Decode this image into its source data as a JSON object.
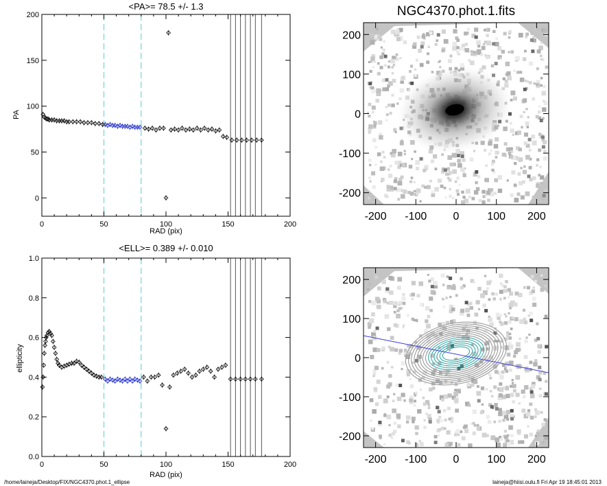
{
  "footer": {
    "path": "/home/laineja/Desktop/FIX/NGC4370.phot.1_ellipse",
    "user_date": "laineja@hiisi.oulu.fi  Fri Apr 19 18:45:01 2013"
  },
  "image_panels": {
    "title": "NGC4370.phot.1.fits",
    "x_ticks": [
      -200,
      -100,
      0,
      100,
      200
    ],
    "y_ticks": [
      -200,
      -100,
      0,
      100,
      200
    ]
  },
  "chart_data": [
    {
      "type": "scatter",
      "title": "<PA>=  78.5 +/-   1.3",
      "xlabel": "RAD (pix)",
      "ylabel": "PA",
      "xlim": [
        0,
        200
      ],
      "ylim": [
        -20,
        200
      ],
      "x_ticks": [
        0,
        50,
        100,
        150,
        200
      ],
      "y_ticks": [
        0,
        50,
        100,
        150,
        200
      ],
      "dashed_vlines": [
        50,
        80
      ],
      "solid_vlines": [
        152,
        156,
        160,
        164,
        168,
        172,
        177
      ],
      "series": [
        {
          "color": "#000000",
          "x": [
            1,
            2,
            3,
            4,
            5,
            6,
            8,
            10,
            12,
            14,
            16,
            18,
            20,
            22,
            25,
            28,
            31,
            34,
            37,
            40,
            43,
            46,
            49
          ],
          "y": [
            91,
            88,
            87,
            86,
            86,
            85,
            85,
            85,
            84,
            84,
            84,
            84,
            83,
            83,
            83,
            83,
            83,
            82,
            82,
            82,
            81,
            81,
            80
          ]
        },
        {
          "color": "#1f2ccc",
          "x": [
            51,
            53,
            55,
            57,
            59,
            61,
            63,
            65,
            67,
            69,
            71,
            73,
            75,
            77,
            79
          ],
          "y": [
            80,
            79,
            80,
            79,
            79,
            78,
            79,
            78,
            78,
            78,
            77,
            78,
            77,
            77,
            77
          ]
        },
        {
          "color": "#000000",
          "x": [
            83,
            86,
            89,
            92,
            95,
            98,
            100,
            102,
            104,
            107,
            110,
            113,
            116,
            119,
            122,
            125,
            128,
            131,
            134,
            137,
            140,
            143,
            146,
            149,
            153,
            157,
            161,
            165,
            169,
            173,
            177
          ],
          "y": [
            76,
            75,
            76,
            74,
            76,
            76,
            0,
            180,
            74,
            75,
            74,
            76,
            74,
            75,
            74,
            76,
            74,
            76,
            74,
            75,
            73,
            74,
            67,
            66,
            63,
            63,
            63,
            63,
            63,
            63,
            63
          ]
        }
      ]
    },
    {
      "type": "scatter",
      "title": "<ELL>= 0.389 +/-  0.010",
      "xlabel": "RAD (pix)",
      "ylabel": "ellipticity",
      "xlim": [
        0,
        200
      ],
      "ylim": [
        0,
        1
      ],
      "x_ticks": [
        0,
        50,
        100,
        150,
        200
      ],
      "y_ticks": [
        0.0,
        0.2,
        0.4,
        0.6,
        0.8,
        1.0
      ],
      "dashed_vlines": [
        50,
        80
      ],
      "solid_vlines": [
        152,
        156,
        160,
        164,
        168,
        172,
        177
      ],
      "series": [
        {
          "color": "#000000",
          "x": [
            0.5,
            1,
            1.5,
            2,
            2.5,
            3,
            3.5,
            4,
            5,
            6,
            7,
            8,
            9,
            10,
            11,
            12,
            13,
            14,
            16,
            18,
            20,
            22,
            24,
            26,
            28,
            30,
            32,
            34,
            36,
            38,
            40,
            42,
            44,
            46,
            48
          ],
          "y": [
            0.35,
            0.4,
            0.46,
            0.52,
            0.56,
            0.58,
            0.6,
            0.61,
            0.625,
            0.63,
            0.62,
            0.61,
            0.58,
            0.55,
            0.52,
            0.49,
            0.47,
            0.46,
            0.45,
            0.455,
            0.46,
            0.465,
            0.47,
            0.47,
            0.48,
            0.475,
            0.46,
            0.45,
            0.44,
            0.43,
            0.42,
            0.41,
            0.405,
            0.4,
            0.4
          ]
        },
        {
          "color": "#1f2ccc",
          "x": [
            51,
            53,
            55,
            57,
            59,
            61,
            63,
            65,
            67,
            69,
            71,
            73,
            75,
            77,
            79
          ],
          "y": [
            0.39,
            0.38,
            0.39,
            0.385,
            0.38,
            0.39,
            0.385,
            0.38,
            0.39,
            0.38,
            0.39,
            0.38,
            0.39,
            0.385,
            0.38
          ]
        },
        {
          "color": "#000000",
          "x": [
            82,
            85,
            88,
            91,
            94,
            97,
            100,
            103,
            106,
            109,
            112,
            115,
            118,
            121,
            124,
            127,
            130,
            133,
            136,
            139,
            142,
            145,
            148,
            152,
            156,
            160,
            164,
            168,
            172,
            177
          ],
          "y": [
            0.4,
            0.38,
            0.4,
            0.4,
            0.41,
            0.36,
            0.14,
            0.35,
            0.41,
            0.42,
            0.43,
            0.44,
            0.42,
            0.4,
            0.41,
            0.43,
            0.44,
            0.45,
            0.43,
            0.4,
            0.44,
            0.45,
            0.46,
            0.39,
            0.39,
            0.39,
            0.39,
            0.39,
            0.39,
            0.39
          ]
        }
      ]
    }
  ]
}
